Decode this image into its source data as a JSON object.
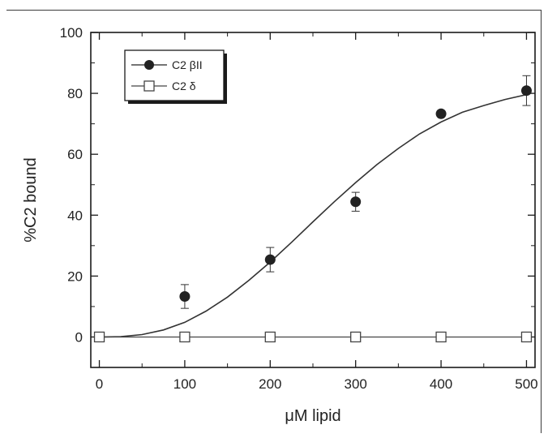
{
  "chart_data": {
    "type": "scatter",
    "xlabel": "μM lipid",
    "ylabel": "%C2 bound",
    "xlim": [
      -10,
      510
    ],
    "ylim": [
      -10,
      100
    ],
    "x_ticks": [
      0,
      100,
      200,
      300,
      400,
      500
    ],
    "y_ticks": [
      0,
      20,
      40,
      60,
      80,
      100
    ],
    "x_tick_labels": [
      "0",
      "100",
      "200",
      "300",
      "400",
      "500"
    ],
    "y_tick_labels": [
      "0",
      "20",
      "40",
      "60",
      "80",
      "100"
    ],
    "grid": false,
    "legend_position": "top-left",
    "series": [
      {
        "name": "C2 βII",
        "marker": "filled-circle",
        "color": "#222222",
        "x": [
          100,
          200,
          300,
          400,
          500
        ],
        "y": [
          13.3,
          25.4,
          44.4,
          73.3,
          80.9
        ],
        "error": [
          3.9,
          4.0,
          3.1,
          0,
          4.9
        ]
      },
      {
        "name": "C2 δ",
        "marker": "open-square",
        "color": "#444444",
        "x": [
          0,
          100,
          200,
          300,
          400,
          500
        ],
        "y": [
          0,
          0,
          0,
          0,
          0,
          0
        ],
        "connected": true
      }
    ],
    "fit_curve": {
      "series": "C2 βII",
      "color": "#333333",
      "x": [
        0,
        25,
        50,
        75,
        100,
        125,
        150,
        175,
        200,
        225,
        250,
        275,
        300,
        325,
        350,
        375,
        400,
        425,
        450,
        475,
        500
      ],
      "y": [
        0,
        0.1,
        0.8,
        2.3,
        4.8,
        8.5,
        13.1,
        18.6,
        24.6,
        31.1,
        37.8,
        44.4,
        50.7,
        56.6,
        61.9,
        66.7,
        70.6,
        73.8,
        76.0,
        78.0,
        79.6
      ]
    }
  }
}
